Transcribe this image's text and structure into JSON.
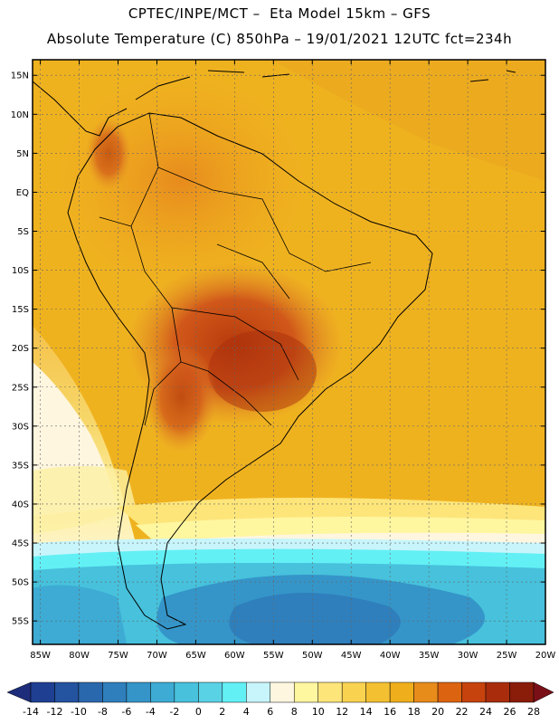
{
  "header": {
    "line1": "CPTEC/INPE/MCT –  Eta Model 15km – GFS",
    "line2": "Absolute Temperature (C) 850hPa – 19/01/2021 12UTC fct=234h"
  },
  "map": {
    "lon_range": [
      -86,
      -20
    ],
    "lat_range": [
      -58,
      17
    ],
    "lat_ticks": [
      "15N",
      "10N",
      "5N",
      "EQ",
      "5S",
      "10S",
      "15S",
      "20S",
      "25S",
      "30S",
      "35S",
      "40S",
      "45S",
      "50S",
      "55S"
    ],
    "lat_values": [
      15,
      10,
      5,
      0,
      -5,
      -10,
      -15,
      -20,
      -25,
      -30,
      -35,
      -40,
      -45,
      -50,
      -55
    ],
    "lon_ticks": [
      "85W",
      "80W",
      "75W",
      "70W",
      "65W",
      "60W",
      "55W",
      "50W",
      "45W",
      "40W",
      "35W",
      "30W",
      "25W",
      "20W"
    ],
    "lon_values": [
      -85,
      -80,
      -75,
      -70,
      -65,
      -60,
      -55,
      -50,
      -45,
      -40,
      -35,
      -30,
      -25,
      -20
    ],
    "gridlines": true
  },
  "colorbar": {
    "labels": [
      "-14",
      "-12",
      "-10",
      "-8",
      "-6",
      "-4",
      "-2",
      "0",
      "2",
      "4",
      "6",
      "8",
      "10",
      "12",
      "14",
      "16",
      "18",
      "20",
      "22",
      "24",
      "26",
      "28"
    ],
    "colors": [
      "#1f3f93",
      "#24539f",
      "#2a68ad",
      "#2f7fbc",
      "#3595c8",
      "#3dabd3",
      "#47c1dc",
      "#5ad2e6",
      "#62f0f5",
      "#c7f5fb",
      "#fff6e0",
      "#fff6a0",
      "#fde57a",
      "#f9d250",
      "#f3c032",
      "#efae1c",
      "#e78b1b",
      "#dc6310",
      "#c6430d",
      "#a92d0c",
      "#8a1c0a"
    ],
    "under_color": "#1d2d7b",
    "over_color": "#7a0f18",
    "units": "C"
  }
}
